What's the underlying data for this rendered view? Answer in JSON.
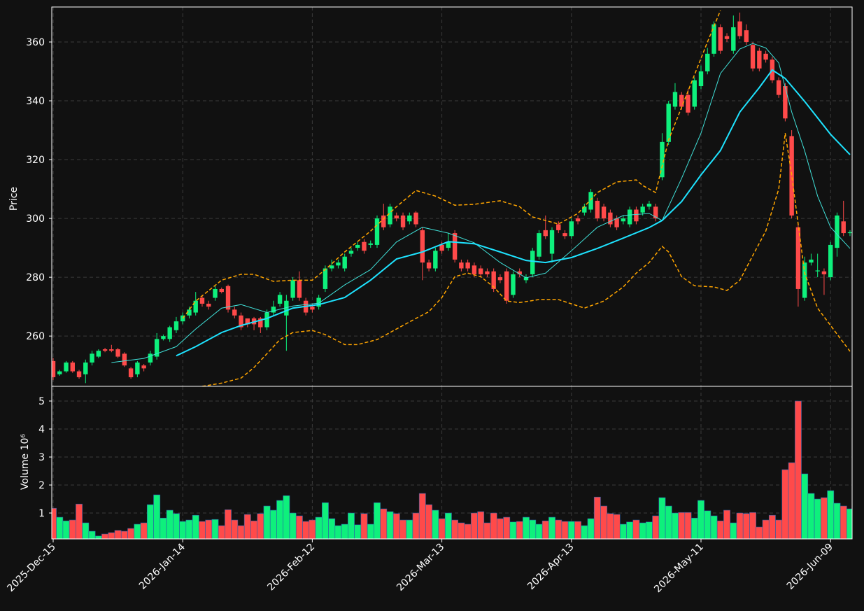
{
  "chart_data": {
    "type": "candlestick",
    "categories": [
      "2025-Dec-15",
      null,
      null,
      null,
      null,
      null,
      null,
      null,
      null,
      null,
      null,
      null,
      null,
      null,
      null,
      null,
      null,
      null,
      null,
      null,
      "2026-Jan-14",
      null,
      null,
      null,
      null,
      null,
      null,
      null,
      null,
      null,
      null,
      null,
      null,
      null,
      null,
      null,
      null,
      null,
      null,
      null,
      "2026-Feb-12",
      null,
      null,
      null,
      null,
      null,
      null,
      null,
      null,
      null,
      null,
      null,
      null,
      null,
      null,
      null,
      null,
      null,
      null,
      null,
      "2026-Mar-13",
      null,
      null,
      null,
      null,
      null,
      null,
      null,
      null,
      null,
      null,
      null,
      null,
      null,
      null,
      null,
      null,
      null,
      null,
      null,
      "2026-Apr-13",
      null,
      null,
      null,
      null,
      null,
      null,
      null,
      null,
      null,
      null,
      null,
      null,
      null,
      null,
      null,
      null,
      null,
      null,
      null,
      "2026-May-11",
      null,
      null,
      null,
      null,
      null,
      null,
      null,
      null,
      null,
      null,
      null,
      null,
      null,
      null,
      null,
      null,
      null,
      null,
      null,
      "2026-Jun-09",
      null,
      null,
      null
    ],
    "open": [
      251.5,
      247,
      248,
      251,
      248,
      247,
      251,
      253,
      255.5,
      255.5,
      255.5,
      254,
      249,
      247,
      250,
      251,
      253,
      259,
      259,
      262,
      265,
      267,
      268,
      273,
      271,
      273,
      276,
      277,
      269,
      267,
      266,
      266,
      266,
      263,
      268,
      271,
      267,
      273,
      279,
      272,
      270,
      270,
      276,
      283,
      284,
      283,
      288,
      290,
      292,
      291,
      291,
      301,
      298,
      301,
      301,
      299,
      302,
      296,
      285,
      283,
      291,
      290,
      295,
      285,
      285,
      284,
      283,
      282,
      282,
      280,
      282,
      274,
      282,
      279,
      281,
      287,
      296,
      288,
      298,
      295,
      294,
      300,
      302,
      303,
      306,
      304,
      302,
      300,
      299,
      298,
      303,
      302,
      304,
      304,
      314,
      326,
      338,
      342,
      342,
      338,
      345,
      350,
      356,
      365,
      362,
      357,
      367,
      364,
      359,
      357,
      356,
      354,
      347,
      345,
      328,
      297,
      273,
      285,
      282,
      282,
      280,
      290,
      299,
      295
    ],
    "high": [
      252.5,
      248.5,
      251.5,
      251.5,
      248.5,
      252,
      255,
      255.5,
      256,
      257,
      256,
      254.5,
      249.5,
      251.5,
      250.5,
      255,
      261,
      260.5,
      263.5,
      266.5,
      268,
      270,
      275,
      274,
      272,
      277,
      276.5,
      277.5,
      270,
      268,
      265.5,
      266.5,
      266.5,
      269,
      272,
      275,
      274,
      280,
      282,
      273,
      271,
      274,
      284,
      286,
      286,
      288,
      290,
      292,
      293,
      292.5,
      301,
      305,
      305,
      302,
      302,
      302,
      302.5,
      297,
      286,
      290,
      292,
      295,
      296,
      286,
      286,
      285,
      284,
      283,
      283,
      281,
      283,
      282,
      283,
      281,
      290,
      296,
      301,
      297,
      299,
      296,
      300,
      301,
      305,
      310,
      307,
      305,
      303,
      301,
      301,
      304,
      304,
      305,
      306,
      305,
      329,
      340,
      346,
      343,
      344,
      348,
      352,
      358,
      367,
      366,
      363,
      369,
      370,
      366,
      360,
      358,
      357,
      355,
      348,
      346,
      330,
      298,
      287,
      288,
      288,
      283,
      292,
      302,
      306,
      296
    ],
    "low": [
      245,
      246.5,
      247.5,
      247.5,
      245.5,
      244,
      250,
      252.5,
      254.5,
      254.5,
      252.5,
      249.5,
      245.5,
      246,
      248,
      250,
      252,
      258.5,
      258,
      261,
      264,
      266,
      267,
      270,
      269,
      272,
      274.5,
      268,
      266,
      262,
      263,
      262,
      261,
      262,
      267,
      270,
      255,
      272,
      272,
      267,
      268,
      269,
      275,
      282,
      283,
      282,
      287,
      289,
      288,
      290,
      290,
      296,
      297,
      299,
      296,
      298,
      297,
      279,
      282,
      282,
      288,
      289,
      285,
      282,
      282,
      280,
      280,
      280,
      275,
      278,
      271,
      273,
      280,
      278,
      280,
      286,
      293,
      285,
      295,
      293,
      293,
      298,
      301,
      302,
      299,
      299,
      297,
      296,
      298,
      297,
      298,
      301,
      303,
      299,
      313,
      325,
      337,
      337,
      335,
      337,
      344,
      349,
      355,
      356,
      360,
      356,
      361,
      359,
      350,
      350,
      353,
      346,
      341,
      333,
      300,
      270,
      272,
      284,
      280,
      274,
      279,
      287,
      294,
      294
    ],
    "close": [
      246,
      248,
      251,
      248,
      246,
      251,
      254,
      255,
      255,
      255,
      253,
      250,
      246,
      251,
      249,
      254,
      259,
      260,
      263,
      265,
      267,
      269,
      272,
      271,
      270,
      276,
      275,
      269,
      267,
      263,
      264,
      264,
      263,
      268,
      270,
      274,
      272,
      279,
      273,
      268,
      269,
      273,
      283,
      284,
      285,
      287,
      289,
      291,
      289,
      291.5,
      300,
      297,
      304,
      300,
      297,
      301,
      298,
      285,
      283,
      289,
      289,
      292,
      286,
      283,
      283,
      281,
      281,
      281,
      276,
      279,
      272,
      281,
      281,
      280,
      289,
      295,
      294,
      296,
      296,
      294,
      299,
      299,
      304,
      309,
      300,
      300,
      298,
      297,
      300,
      303,
      299,
      304,
      305,
      300,
      326,
      339,
      343,
      338,
      336,
      347,
      350,
      356,
      366,
      357,
      361,
      365,
      362,
      360,
      351,
      351,
      354,
      347,
      342,
      334,
      301,
      276,
      285,
      286,
      282.3,
      281,
      291,
      301,
      295,
      295.3
    ],
    "up_color": "#0ef07c",
    "down_color": "#ff4a4a",
    "ylabel": "Price",
    "ylim": [
      242.9,
      371.9
    ],
    "yticks": [
      260,
      280,
      300,
      320,
      340,
      360
    ],
    "grid": true,
    "lines": [
      {
        "color": "#40e0d8",
        "width": 1,
        "dash": false,
        "x": [
          9,
          14,
          19,
          22,
          26,
          29,
          33,
          37,
          41,
          45,
          49,
          53,
          57,
          61,
          65,
          69,
          73,
          76,
          80,
          84,
          88,
          92,
          94,
          97,
          100,
          103,
          106,
          108,
          110,
          112,
          114,
          116,
          118,
          120,
          123
        ],
        "values": [
          251,
          252.4,
          256.4,
          262.4,
          269.5,
          270.7,
          268,
          270.2,
          271.2,
          277.4,
          282.6,
          292,
          297,
          295,
          291.7,
          285,
          279.8,
          281.4,
          289,
          297,
          301,
          301.7,
          299.3,
          313.6,
          329,
          349.3,
          357.6,
          359.5,
          358,
          352.9,
          336.2,
          323,
          307.6,
          297,
          289.8
        ]
      },
      {
        "color": "#1ee3ff",
        "width": 2,
        "dash": false,
        "x": [
          19,
          22,
          26,
          29,
          33,
          37,
          41,
          45,
          49,
          53,
          57,
          61,
          65,
          69,
          73,
          76,
          80,
          84,
          88,
          92,
          94,
          97,
          100,
          103,
          106,
          109,
          111,
          113,
          116,
          120,
          123
        ],
        "values": [
          253.3,
          256.4,
          261.2,
          263.6,
          266,
          269.5,
          270.7,
          273.1,
          279,
          286.2,
          288.6,
          292.1,
          291.4,
          288.6,
          285.7,
          285,
          286.7,
          289.8,
          293.3,
          296.9,
          299.3,
          305.7,
          314.8,
          323.1,
          336.2,
          344.5,
          350.5,
          347.6,
          339.8,
          328.6,
          321.7
        ]
      },
      {
        "color": "#ffa500",
        "width": 1.5,
        "dash": true,
        "x": [
          20,
          22,
          26,
          29,
          31,
          34,
          37,
          40,
          42,
          45,
          49,
          53,
          56,
          59,
          62,
          65,
          69,
          72,
          74,
          78,
          81,
          84,
          87,
          90,
          91,
          93,
          95,
          98,
          101,
          103
        ],
        "values": [
          266,
          271.9,
          279,
          281,
          281,
          278.6,
          279,
          279,
          282.6,
          288.6,
          295.7,
          304,
          309.5,
          307.6,
          304.5,
          304.8,
          306,
          304,
          300.5,
          298.1,
          301.7,
          308.8,
          312.4,
          313.1,
          311.2,
          308.8,
          326.7,
          343.3,
          360,
          370.7
        ]
      },
      {
        "color": "#ffa500",
        "width": 1.5,
        "dash": true,
        "x": [
          23,
          26,
          29,
          31,
          33,
          35,
          37,
          40,
          42,
          45,
          47,
          50,
          53,
          56,
          58,
          60,
          62,
          64,
          66,
          68,
          70,
          72,
          75,
          78,
          82,
          85,
          88,
          90,
          92,
          94,
          95,
          97,
          99,
          102,
          104,
          106,
          108,
          110,
          112,
          113,
          114,
          116,
          118,
          120,
          123
        ],
        "values": [
          242.9,
          244,
          245.7,
          249.3,
          254,
          258.8,
          261.2,
          261.9,
          260.5,
          257.1,
          257.1,
          258.8,
          262.4,
          266,
          268.3,
          273.1,
          280.2,
          281.4,
          280.2,
          276.7,
          271.9,
          271.4,
          272.4,
          272.4,
          269.5,
          271.9,
          276.7,
          281.4,
          285,
          290.5,
          288.6,
          280.2,
          277.1,
          276.7,
          275.5,
          279,
          287.4,
          295.7,
          310,
          329,
          314.8,
          281.4,
          269.5,
          263.6,
          254.8
        ]
      }
    ],
    "volume": {
      "ylabel": "Volume  10⁶",
      "ylim": [
        0.075,
        5.525
      ],
      "yticks": [
        1,
        2,
        3,
        4,
        5
      ],
      "values": [
        1.17,
        0.85,
        0.72,
        0.75,
        1.32,
        0.65,
        0.35,
        0.18,
        0.25,
        0.3,
        0.38,
        0.35,
        0.45,
        0.6,
        0.65,
        1.3,
        1.65,
        0.82,
        1.1,
        0.98,
        0.7,
        0.75,
        0.92,
        0.7,
        0.75,
        0.77,
        0.55,
        1.12,
        0.75,
        0.55,
        0.95,
        0.72,
        0.98,
        1.25,
        1.1,
        1.45,
        1.62,
        1.0,
        0.9,
        0.7,
        0.75,
        0.85,
        1.37,
        0.8,
        0.55,
        0.6,
        1.0,
        0.58,
        0.98,
        0.6,
        1.37,
        1.15,
        1.05,
        0.98,
        0.75,
        0.75,
        1.0,
        1.7,
        1.3,
        1.1,
        0.8,
        1.0,
        0.75,
        0.65,
        0.6,
        1.0,
        1.05,
        0.65,
        1.0,
        0.8,
        0.85,
        0.68,
        0.7,
        0.85,
        0.75,
        0.6,
        0.72,
        0.85,
        0.75,
        0.7,
        0.7,
        0.7,
        0.55,
        0.8,
        1.57,
        1.25,
        0.98,
        0.95,
        0.6,
        0.68,
        0.75,
        0.65,
        0.68,
        0.9,
        1.55,
        1.25,
        1.0,
        1.02,
        1.02,
        0.82,
        1.45,
        1.08,
        0.9,
        0.72,
        1.1,
        0.65,
        1.0,
        0.98,
        1.02,
        0.5,
        0.75,
        0.92,
        0.75,
        2.55,
        2.8,
        5.0,
        2.4,
        1.7,
        1.5,
        1.55,
        1.8,
        1.35,
        1.25,
        1.15
      ]
    }
  }
}
